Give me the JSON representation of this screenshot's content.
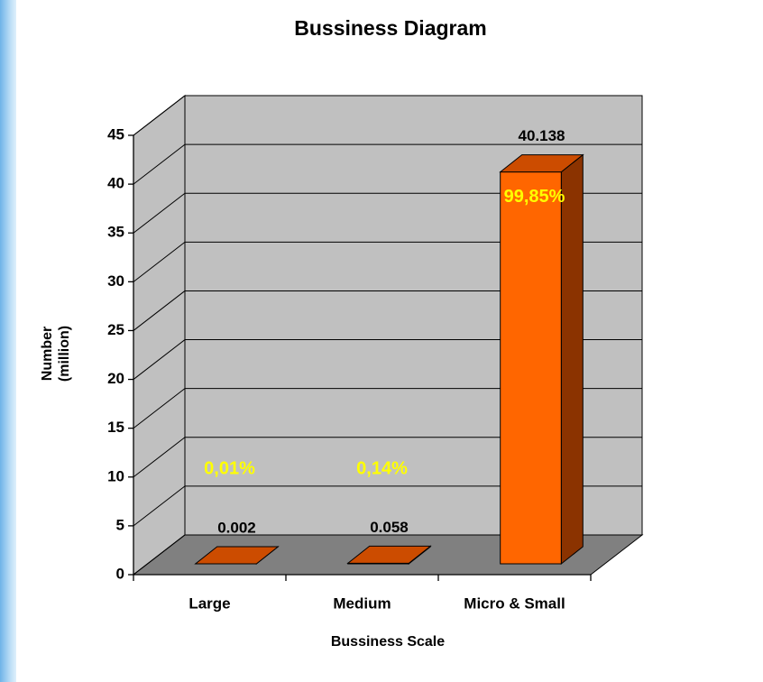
{
  "chart_data": {
    "type": "bar3d",
    "title": "Bussiness Diagram",
    "xlabel": "Bussiness Scale",
    "ylabel": [
      "Number",
      "(million)"
    ],
    "categories": [
      "Large",
      "Medium",
      "Micro & Small"
    ],
    "values": [
      0.002,
      0.058,
      40.138
    ],
    "annotations": [
      "0,01%",
      "0,14%",
      "99,85%"
    ],
    "color": "#ff6600",
    "ylim": [
      0,
      45
    ],
    "yticks": [
      0,
      5,
      10,
      15,
      20,
      25,
      30,
      35,
      40,
      45
    ],
    "grid": true
  }
}
